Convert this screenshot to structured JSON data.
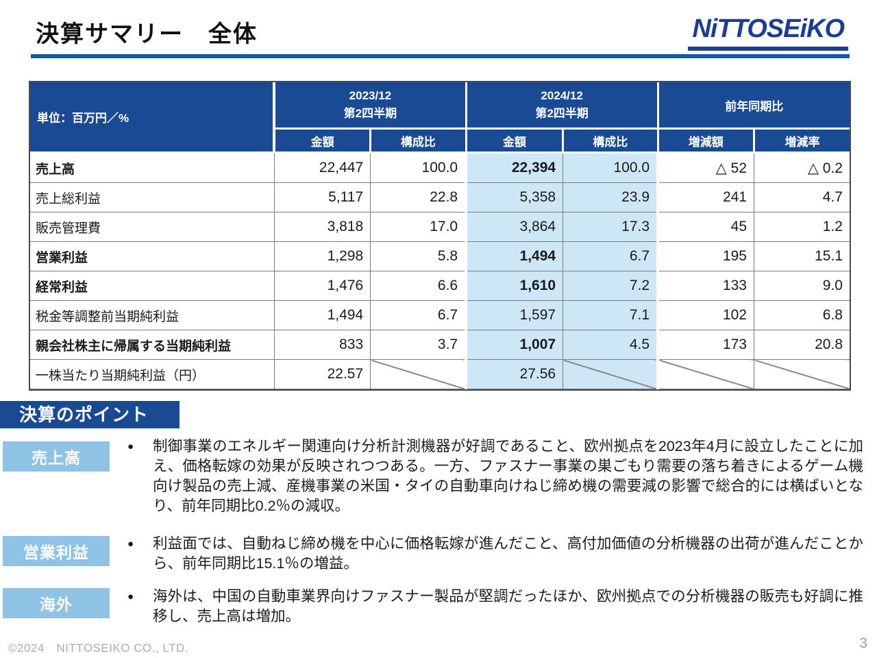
{
  "header": {
    "title": "決算サマリー　全体",
    "logo_text": "NiTTOSEiKO",
    "logo_color": "#1c3d96",
    "rule_color": "#1458a8"
  },
  "table": {
    "unit_label": "単位：百万円／%",
    "groups": [
      {
        "line1": "2023/12",
        "line2": "第2四半期"
      },
      {
        "line1": "2024/12",
        "line2": "第2四半期"
      },
      {
        "line1": "前年同期比",
        "line2": ""
      }
    ],
    "subheads": [
      "金額",
      "構成比",
      "金額",
      "構成比",
      "増減額",
      "増減率"
    ],
    "header_color": "#1a4a94",
    "highlight_color": "#cde7f6",
    "rows": [
      {
        "label": "売上高",
        "emphasis": true,
        "cells": [
          "22,447",
          "100.0",
          "22,394",
          "100.0",
          "△ 52",
          "△ 0.2"
        ]
      },
      {
        "label": "売上総利益",
        "emphasis": false,
        "cells": [
          "5,117",
          "22.8",
          "5,358",
          "23.9",
          "241",
          "4.7"
        ]
      },
      {
        "label": "販売管理費",
        "emphasis": false,
        "cells": [
          "3,818",
          "17.0",
          "3,864",
          "17.3",
          "45",
          "1.2"
        ]
      },
      {
        "label": "営業利益",
        "emphasis": true,
        "cells": [
          "1,298",
          "5.8",
          "1,494",
          "6.7",
          "195",
          "15.1"
        ]
      },
      {
        "label": "経常利益",
        "emphasis": true,
        "cells": [
          "1,476",
          "6.6",
          "1,610",
          "7.2",
          "133",
          "9.0"
        ]
      },
      {
        "label": "税金等調整前当期純利益",
        "emphasis": false,
        "cells": [
          "1,494",
          "6.7",
          "1,597",
          "7.1",
          "102",
          "6.8"
        ]
      },
      {
        "label": "親会社株主に帰属する当期純利益",
        "emphasis": true,
        "cells": [
          "833",
          "3.7",
          "1,007",
          "4.5",
          "173",
          "20.8"
        ]
      },
      {
        "label": "一株当たり当期純利益（円）",
        "emphasis": false,
        "cells": [
          "22.57",
          "",
          "27.56",
          "",
          "",
          ""
        ],
        "slash": [
          1,
          3,
          4,
          5
        ]
      }
    ]
  },
  "points": {
    "heading": "決算のポイント",
    "bullet_glyph": "●",
    "label_color": "#8fc3e6",
    "sections": [
      {
        "label": "売上高",
        "text": "制御事業のエネルギー関連向け分析計測機器が好調であること、欧州拠点を2023年4月に設立したことに加え、価格転嫁の効果が反映されつつある。一方、ファスナー事業の巣ごもり需要の落ち着きによるゲーム機向け製品の売上減、産機事業の米国・タイの自動車向けねじ締め機の需要減の影響で総合的には横ばいとなり、前年同期比0.2％の減収。"
      },
      {
        "label": "営業利益",
        "text": "利益面では、自動ねじ締め機を中心に価格転嫁が進んだこと、高付加価値の分析機器の出荷が進んだことから、前年同期比15.1％の増益。"
      },
      {
        "label": "海外",
        "text": "海外は、中国の自動車業界向けファスナー製品が堅調だったほか、欧州拠点での分析機器の販売も好調に推移し、売上高は増加。"
      }
    ]
  },
  "footer": {
    "copyright": "©2024　NITTOSEIKO CO., LTD.",
    "page_number": "3"
  }
}
